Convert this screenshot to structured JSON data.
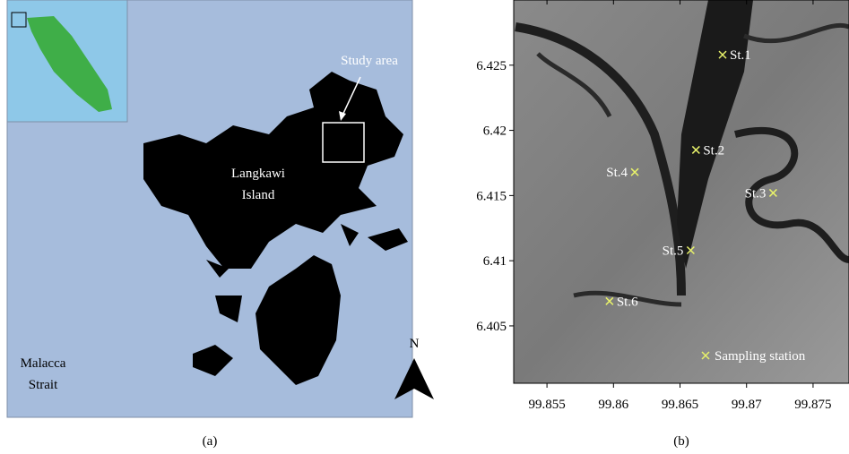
{
  "panel_a": {
    "inset_label": "Study area",
    "island_label": [
      "Langkawi",
      "Island"
    ],
    "sea_label": [
      "Malacca",
      "Strait"
    ],
    "north": "N",
    "caption": "(a)"
  },
  "panel_b": {
    "xlim": [
      99.8525,
      99.8777
    ],
    "ylim": [
      6.4006,
      6.43
    ],
    "xticks": [
      99.855,
      99.86,
      99.865,
      99.87,
      99.875
    ],
    "yticks": [
      6.405,
      6.41,
      6.415,
      6.42,
      6.425
    ],
    "stations": [
      {
        "name": "St.1",
        "lon": 99.8682,
        "lat": 6.4258
      },
      {
        "name": "St.2",
        "lon": 99.8662,
        "lat": 6.4185
      },
      {
        "name": "St.3",
        "lon": 99.872,
        "lat": 6.4152
      },
      {
        "name": "St.4",
        "lon": 99.8616,
        "lat": 6.4168
      },
      {
        "name": "St.5",
        "lon": 99.8658,
        "lat": 6.4108
      },
      {
        "name": "St.6",
        "lon": 99.8597,
        "lat": 6.4069
      }
    ],
    "marker_color": "#e8f26a",
    "legend": "Sampling station",
    "caption": "(b)"
  }
}
